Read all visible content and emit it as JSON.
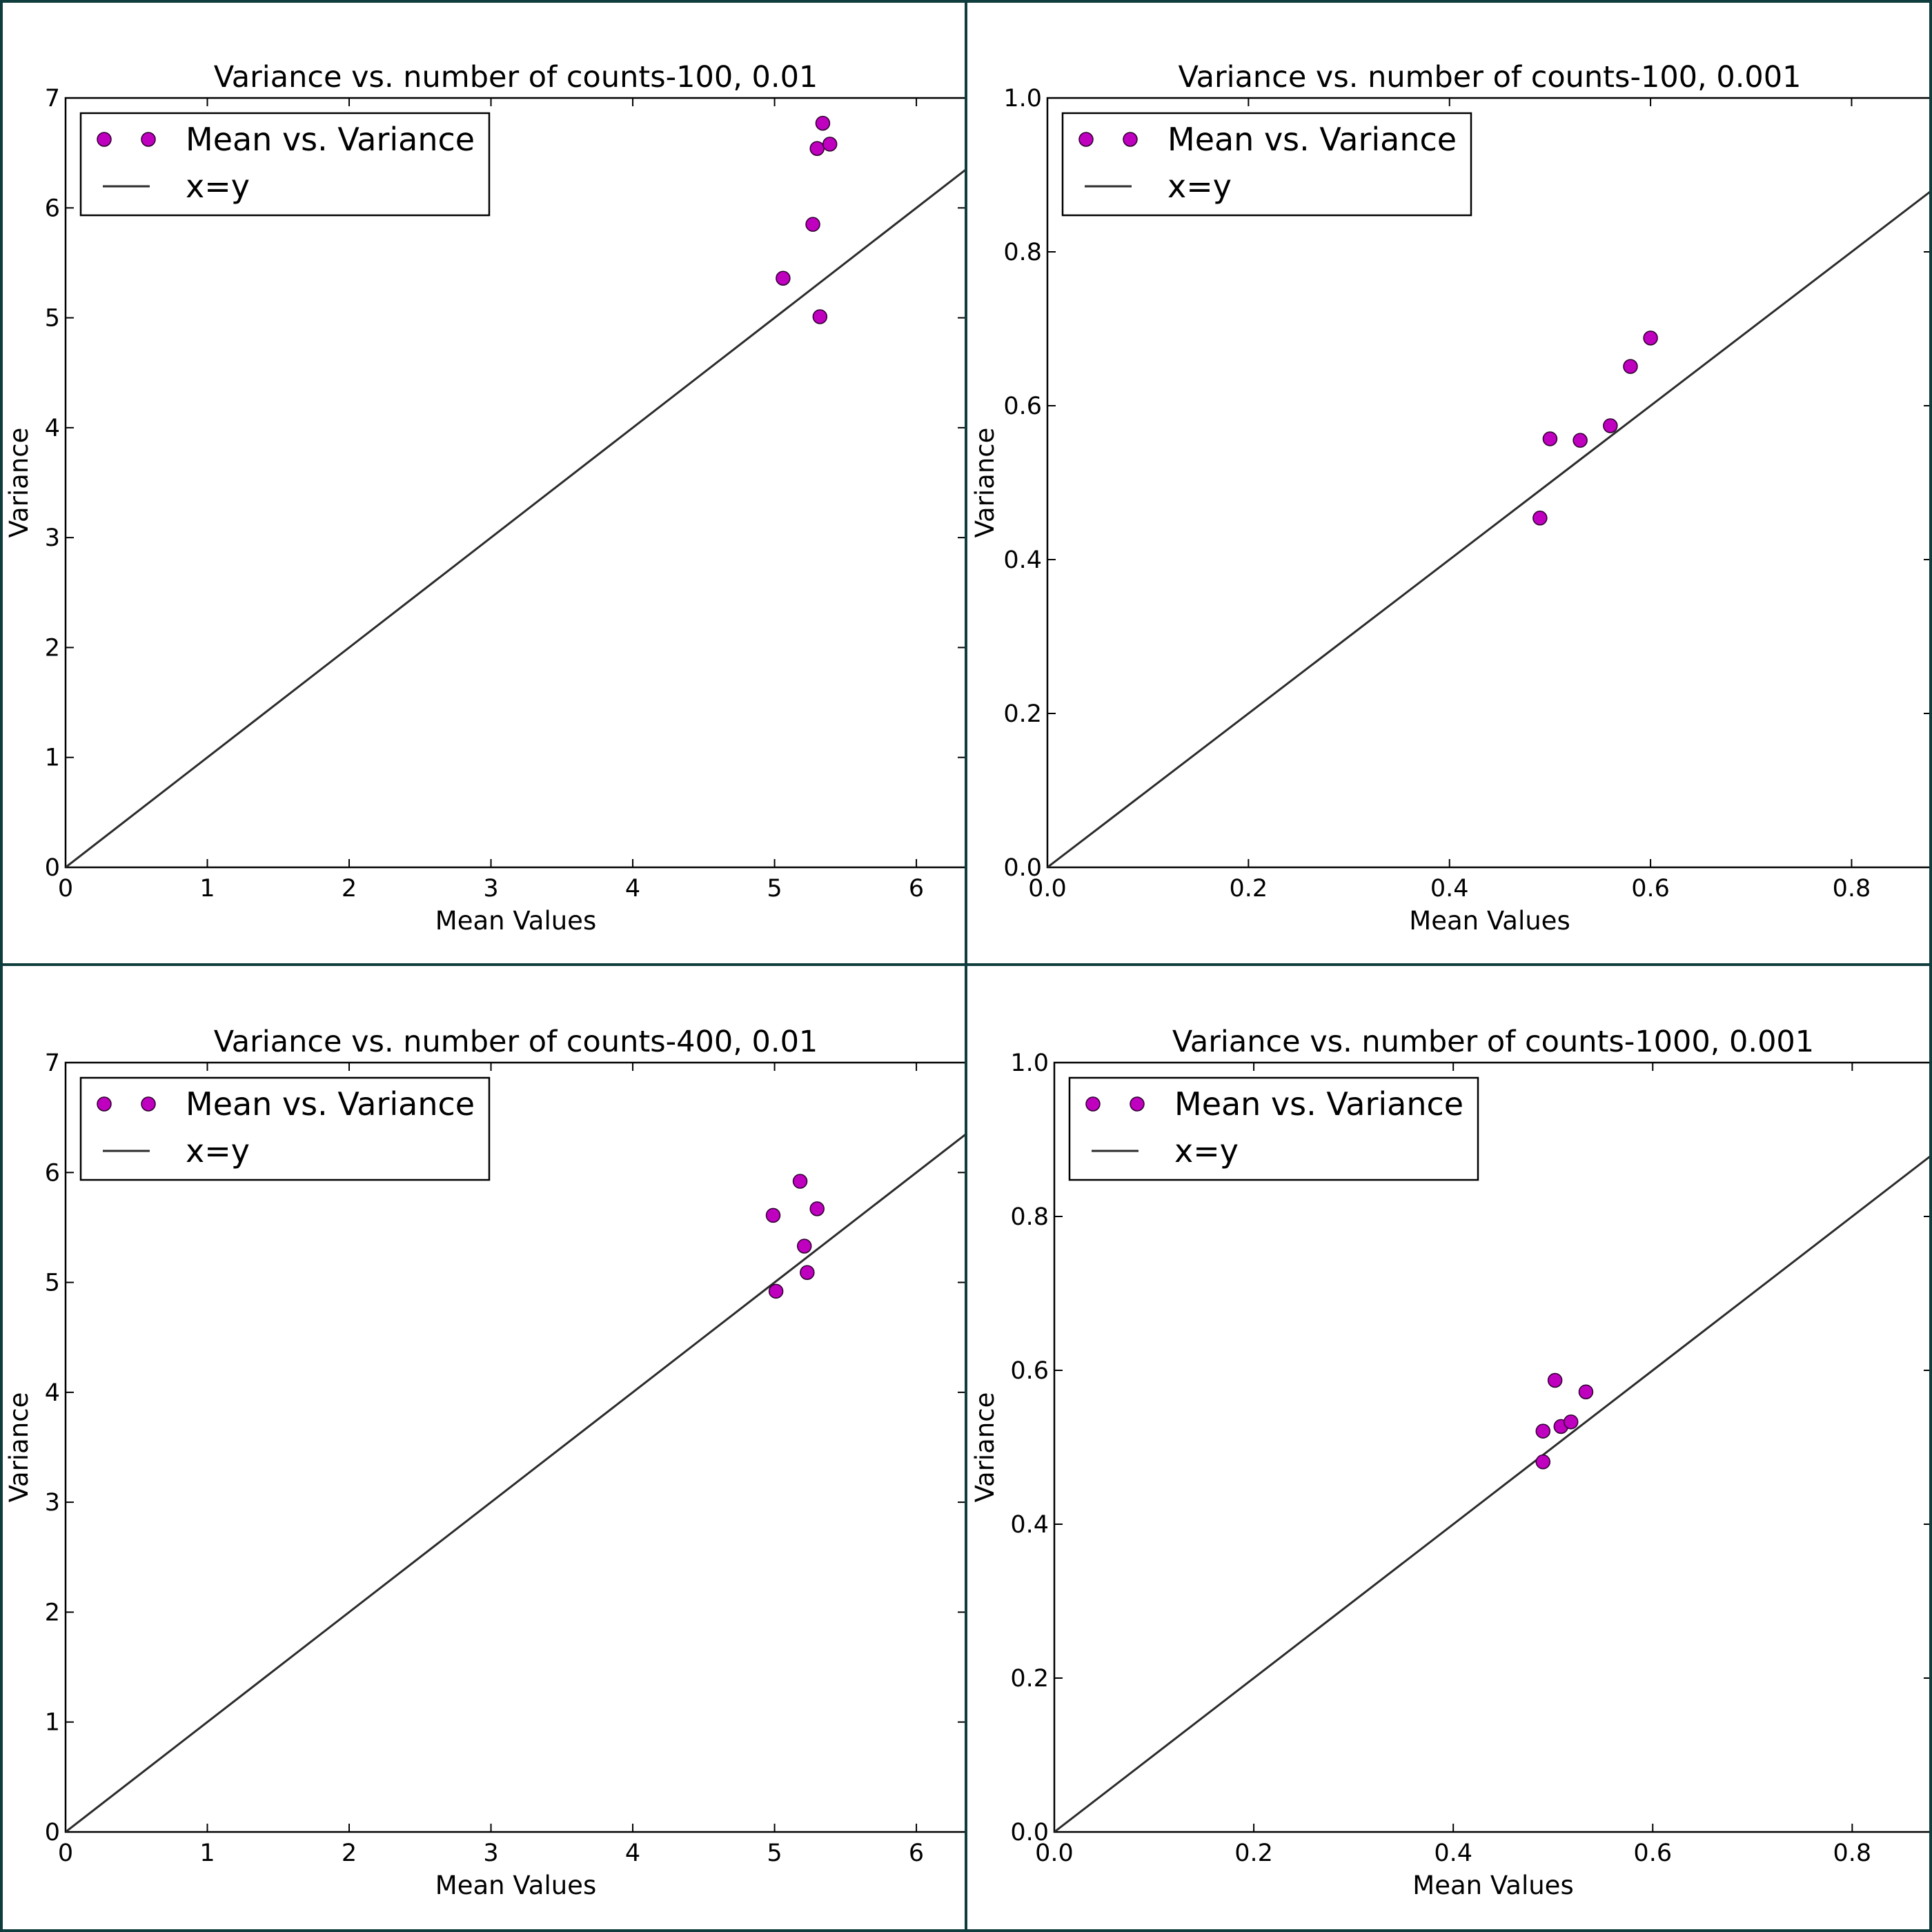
{
  "colors": {
    "frame": "#0f3d3e",
    "marker_fill": "#bf00bf",
    "marker_edge": "#2a002a",
    "line": "#2b2b2b",
    "axes": "#000000"
  },
  "chart_data": [
    {
      "type": "scatter",
      "title": "Variance vs. number of counts-100, 0.01",
      "xlabel": "Mean Values",
      "ylabel": "Variance",
      "xlim": [
        0,
        6.35
      ],
      "ylim": [
        0,
        7
      ],
      "xticks": [
        "0",
        "1",
        "2",
        "3",
        "4",
        "5",
        "6"
      ],
      "yticks": [
        "0",
        "1",
        "2",
        "3",
        "4",
        "5",
        "6",
        "7"
      ],
      "xtick_values": [
        0,
        1,
        2,
        3,
        4,
        5,
        6
      ],
      "ytick_values": [
        0,
        1,
        2,
        3,
        4,
        5,
        6,
        7
      ],
      "grid": false,
      "legend": {
        "placement": "top-left",
        "entries": [
          "Mean vs. Variance",
          "x=y"
        ]
      },
      "series": [
        {
          "name": "Mean vs. Variance",
          "kind": "scatter",
          "x": [
            5.34,
            5.3,
            5.39,
            5.27,
            5.06,
            5.32
          ],
          "y": [
            6.77,
            6.54,
            6.58,
            5.85,
            5.36,
            5.01
          ]
        },
        {
          "name": "x=y",
          "kind": "line",
          "x": [
            0,
            6.35
          ],
          "y": [
            0,
            6.35
          ]
        }
      ]
    },
    {
      "type": "scatter",
      "title": "Variance vs. number of counts-100, 0.001",
      "xlabel": "Mean Values",
      "ylabel": "Variance",
      "xlim": [
        0,
        0.88
      ],
      "ylim": [
        0,
        1.0
      ],
      "xticks": [
        "0.0",
        "0.2",
        "0.4",
        "0.6",
        "0.8"
      ],
      "yticks": [
        "0.0",
        "0.2",
        "0.4",
        "0.6",
        "0.8",
        "1.0"
      ],
      "xtick_values": [
        0,
        0.2,
        0.4,
        0.6,
        0.8
      ],
      "ytick_values": [
        0,
        0.2,
        0.4,
        0.6,
        0.8,
        1.0
      ],
      "grid": false,
      "legend": {
        "placement": "top-left",
        "entries": [
          "Mean vs. Variance",
          "x=y"
        ]
      },
      "series": [
        {
          "name": "Mean vs. Variance",
          "kind": "scatter",
          "x": [
            0.6,
            0.58,
            0.56,
            0.53,
            0.5,
            0.49
          ],
          "y": [
            0.688,
            0.651,
            0.574,
            0.555,
            0.557,
            0.454
          ]
        },
        {
          "name": "x=y",
          "kind": "line",
          "x": [
            0,
            0.88
          ],
          "y": [
            0,
            0.88
          ]
        }
      ]
    },
    {
      "type": "scatter",
      "title": "Variance vs. number of counts-400, 0.01",
      "xlabel": "Mean Values",
      "ylabel": "Variance",
      "xlim": [
        0,
        6.35
      ],
      "ylim": [
        0,
        7
      ],
      "xticks": [
        "0",
        "1",
        "2",
        "3",
        "4",
        "5",
        "6"
      ],
      "yticks": [
        "0",
        "1",
        "2",
        "3",
        "4",
        "5",
        "6",
        "7"
      ],
      "xtick_values": [
        0,
        1,
        2,
        3,
        4,
        5,
        6
      ],
      "ytick_values": [
        0,
        1,
        2,
        3,
        4,
        5,
        6,
        7
      ],
      "grid": false,
      "legend": {
        "placement": "top-left",
        "entries": [
          "Mean vs. Variance",
          "x=y"
        ]
      },
      "series": [
        {
          "name": "Mean vs. Variance",
          "kind": "scatter",
          "x": [
            5.18,
            4.99,
            5.3,
            5.21,
            5.23,
            5.01
          ],
          "y": [
            5.92,
            5.61,
            5.67,
            5.33,
            5.09,
            4.92
          ]
        },
        {
          "name": "x=y",
          "kind": "line",
          "x": [
            0,
            6.35
          ],
          "y": [
            0,
            6.35
          ]
        }
      ]
    },
    {
      "type": "scatter",
      "title": "Variance vs. number of counts-1000, 0.001",
      "xlabel": "Mean Values",
      "ylabel": "Variance",
      "xlim": [
        0,
        0.88
      ],
      "ylim": [
        0,
        1.0
      ],
      "xticks": [
        "0.0",
        "0.2",
        "0.4",
        "0.6",
        "0.8"
      ],
      "yticks": [
        "0.0",
        "0.2",
        "0.4",
        "0.6",
        "0.8",
        "1.0"
      ],
      "xtick_values": [
        0,
        0.2,
        0.4,
        0.6,
        0.8
      ],
      "ytick_values": [
        0,
        0.2,
        0.4,
        0.6,
        0.8,
        1.0
      ],
      "grid": false,
      "legend": {
        "placement": "top-left",
        "entries": [
          "Mean vs. Variance",
          "x=y"
        ]
      },
      "series": [
        {
          "name": "Mean vs. Variance",
          "kind": "scatter",
          "x": [
            0.502,
            0.533,
            0.49,
            0.508,
            0.518,
            0.49
          ],
          "y": [
            0.587,
            0.572,
            0.521,
            0.527,
            0.533,
            0.481
          ]
        },
        {
          "name": "x=y",
          "kind": "line",
          "x": [
            0,
            0.88
          ],
          "y": [
            0,
            0.88
          ]
        }
      ]
    }
  ]
}
